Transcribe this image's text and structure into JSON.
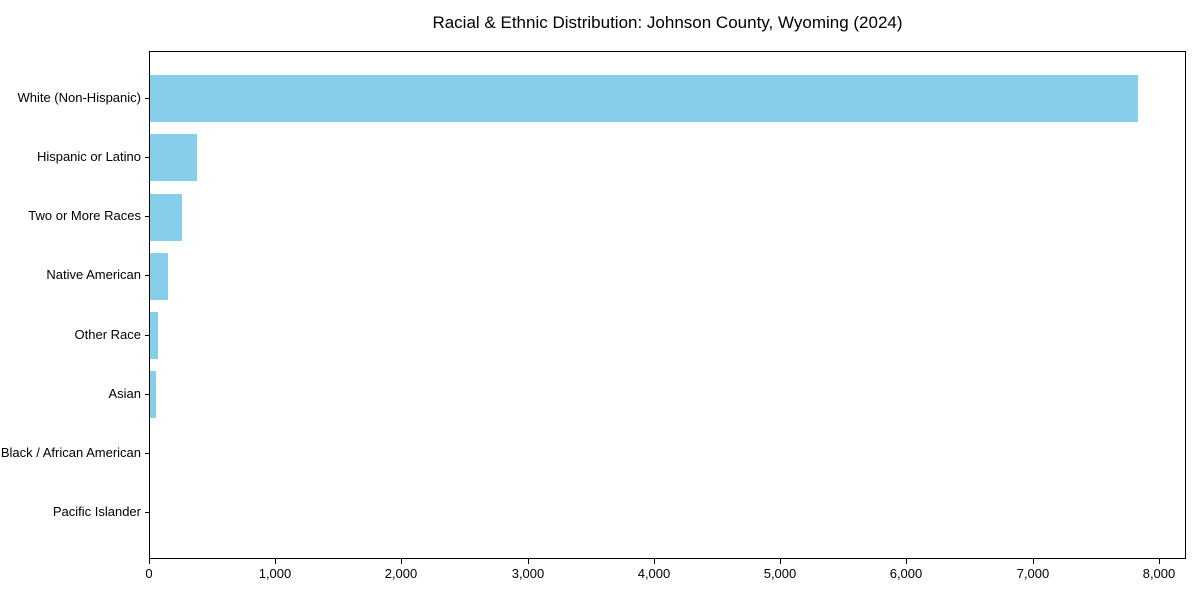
{
  "chart_data": {
    "type": "bar",
    "orientation": "horizontal",
    "title": "Racial & Ethnic Distribution: Johnson County, Wyoming (2024)",
    "categories": [
      "White (Non-Hispanic)",
      "Hispanic or Latino",
      "Two or More Races",
      "Native American",
      "Other Race",
      "Asian",
      "Black / African American",
      "Pacific Islander"
    ],
    "values": [
      7825,
      375,
      255,
      145,
      60,
      50,
      0,
      0
    ],
    "xlabel": "",
    "ylabel": "",
    "xlim": [
      0,
      8215
    ],
    "xticks": [
      0,
      1000,
      2000,
      3000,
      4000,
      5000,
      6000,
      7000,
      8000
    ],
    "xtick_labels": [
      "0",
      "1,000",
      "2,000",
      "3,000",
      "4,000",
      "5,000",
      "6,000",
      "7,000",
      "8,000"
    ],
    "bar_color": "#87CEEB",
    "grid": false,
    "legend": null
  }
}
